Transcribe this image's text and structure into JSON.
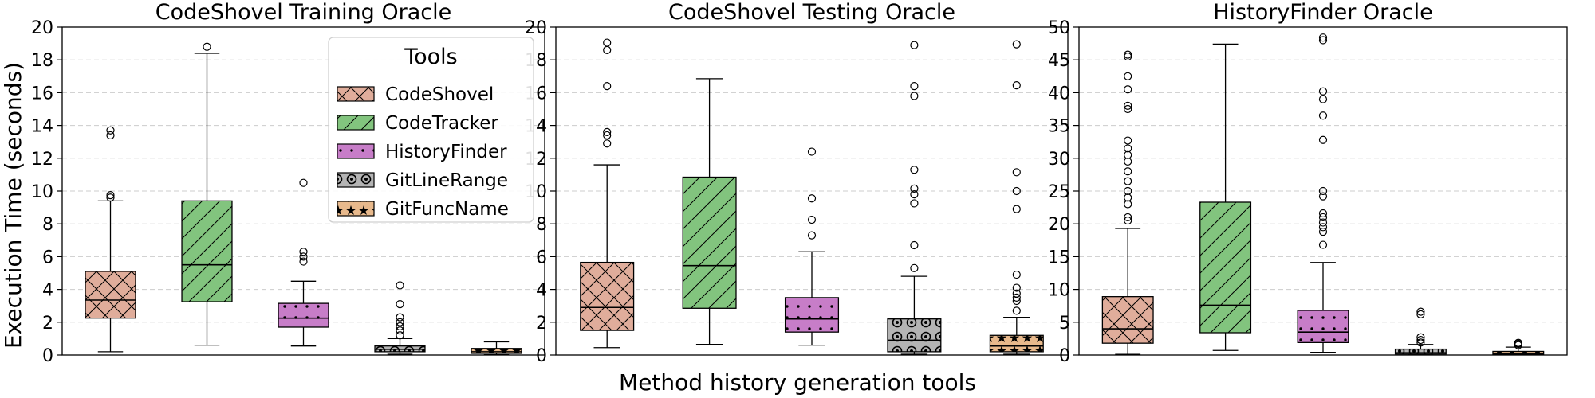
{
  "chart_data": [
    {
      "type": "box",
      "title": "CodeShovel Training Oracle",
      "ylim": [
        0,
        20
      ],
      "yticks": [
        0,
        2,
        4,
        6,
        8,
        10,
        12,
        14,
        16,
        18,
        20
      ],
      "boxes": [
        {
          "tool": "CodeShovel",
          "min": 0.2,
          "q1": 2.25,
          "median": 3.35,
          "q3": 5.1,
          "max": 9.4,
          "outliers": [
            9.6,
            9.75,
            13.4,
            13.7
          ]
        },
        {
          "tool": "CodeTracker",
          "min": 0.6,
          "q1": 3.25,
          "median": 5.5,
          "q3": 9.4,
          "max": 18.4,
          "outliers": [
            18.8
          ]
        },
        {
          "tool": "HistoryFinder",
          "min": 0.55,
          "q1": 1.7,
          "median": 2.25,
          "q3": 3.15,
          "max": 4.5,
          "outliers": [
            5.7,
            6.0,
            6.3,
            10.5
          ]
        },
        {
          "tool": "GitLineRange",
          "min": 0.05,
          "q1": 0.2,
          "median": 0.35,
          "q3": 0.55,
          "max": 1.0,
          "outliers": [
            1.2,
            1.5,
            1.75,
            2.0,
            2.3,
            3.1,
            4.25
          ]
        },
        {
          "tool": "GitFuncName",
          "min": 0.02,
          "q1": 0.1,
          "median": 0.2,
          "q3": 0.4,
          "max": 0.8,
          "outliers": []
        }
      ]
    },
    {
      "type": "box",
      "title": "CodeShovel Testing Oracle",
      "ylim": [
        0,
        20
      ],
      "yticks": [
        0,
        2,
        4,
        6,
        8,
        10,
        12,
        14,
        16,
        18,
        20
      ],
      "boxes": [
        {
          "tool": "CodeShovel",
          "min": 0.45,
          "q1": 1.5,
          "median": 2.9,
          "q3": 5.65,
          "max": 11.6,
          "outliers": [
            12.9,
            13.4,
            13.6,
            16.4,
            18.6,
            19.05
          ]
        },
        {
          "tool": "CodeTracker",
          "min": 0.65,
          "q1": 2.85,
          "median": 5.45,
          "q3": 10.85,
          "max": 16.85,
          "outliers": []
        },
        {
          "tool": "HistoryFinder",
          "min": 0.6,
          "q1": 1.4,
          "median": 2.2,
          "q3": 3.5,
          "max": 6.3,
          "outliers": [
            7.3,
            8.25,
            9.55,
            12.4
          ]
        },
        {
          "tool": "GitLineRange",
          "min": 0.05,
          "q1": 0.2,
          "median": 0.9,
          "q3": 2.2,
          "max": 4.8,
          "outliers": [
            5.3,
            6.7,
            9.25,
            9.8,
            10.15,
            11.3,
            15.8,
            16.4,
            18.9
          ]
        },
        {
          "tool": "GitFuncName",
          "min": 0.05,
          "q1": 0.2,
          "median": 0.55,
          "q3": 1.2,
          "max": 2.3,
          "outliers": [
            2.7,
            3.3,
            3.5,
            3.75,
            4.1,
            4.9,
            8.9,
            10.0,
            11.15,
            16.45,
            18.95
          ]
        }
      ]
    },
    {
      "type": "box",
      "title": "HistoryFinder Oracle",
      "ylim": [
        0,
        50
      ],
      "yticks": [
        0,
        5,
        10,
        15,
        20,
        25,
        30,
        35,
        40,
        45,
        50
      ],
      "boxes": [
        {
          "tool": "CodeShovel",
          "min": 0.1,
          "q1": 1.8,
          "median": 4.0,
          "q3": 8.9,
          "max": 19.3,
          "outliers": [
            20.5,
            21.0,
            23.0,
            24.0,
            25.0,
            26.5,
            28.0,
            29.5,
            30.5,
            31.5,
            32.7,
            37.5,
            38.0,
            40.5,
            42.5,
            45.5,
            45.8
          ]
        },
        {
          "tool": "CodeTracker",
          "min": 0.7,
          "q1": 3.4,
          "median": 7.6,
          "q3": 23.3,
          "max": 47.4,
          "outliers": []
        },
        {
          "tool": "HistoryFinder",
          "min": 0.4,
          "q1": 1.9,
          "median": 3.5,
          "q3": 6.8,
          "max": 14.1,
          "outliers": [
            16.8,
            18.8,
            19.5,
            20.2,
            21.0,
            21.6,
            24.2,
            25.0,
            32.8,
            36.5,
            39.0,
            40.2,
            48.0,
            48.4
          ]
        },
        {
          "tool": "GitLineRange",
          "min": 0.02,
          "q1": 0.15,
          "median": 0.35,
          "q3": 0.9,
          "max": 1.6,
          "outliers": [
            1.9,
            2.3,
            2.7,
            6.2,
            6.6
          ]
        },
        {
          "tool": "GitFuncName",
          "min": 0.02,
          "q1": 0.1,
          "median": 0.25,
          "q3": 0.55,
          "max": 1.2,
          "outliers": [
            1.5,
            1.7,
            1.85
          ]
        }
      ]
    }
  ],
  "ylabel": "Execution Time (seconds)",
  "xlabel": "Method history generation tools",
  "legend": {
    "title": "Tools",
    "position": "top-right of first panel",
    "entries": [
      {
        "label": "CodeShovel",
        "color": "#e0ad9b",
        "pattern": "crosshatch"
      },
      {
        "label": "CodeTracker",
        "color": "#82c47e",
        "pattern": "diagonal"
      },
      {
        "label": "HistoryFinder",
        "color": "#c77dc8",
        "pattern": "dots"
      },
      {
        "label": "GitLineRange",
        "color": "#b4b4b4",
        "pattern": "circles"
      },
      {
        "label": "GitFuncName",
        "color": "#e8b98c",
        "pattern": "stars"
      }
    ]
  },
  "colors": {
    "grid": "#cccccc",
    "axis": "#000000"
  }
}
